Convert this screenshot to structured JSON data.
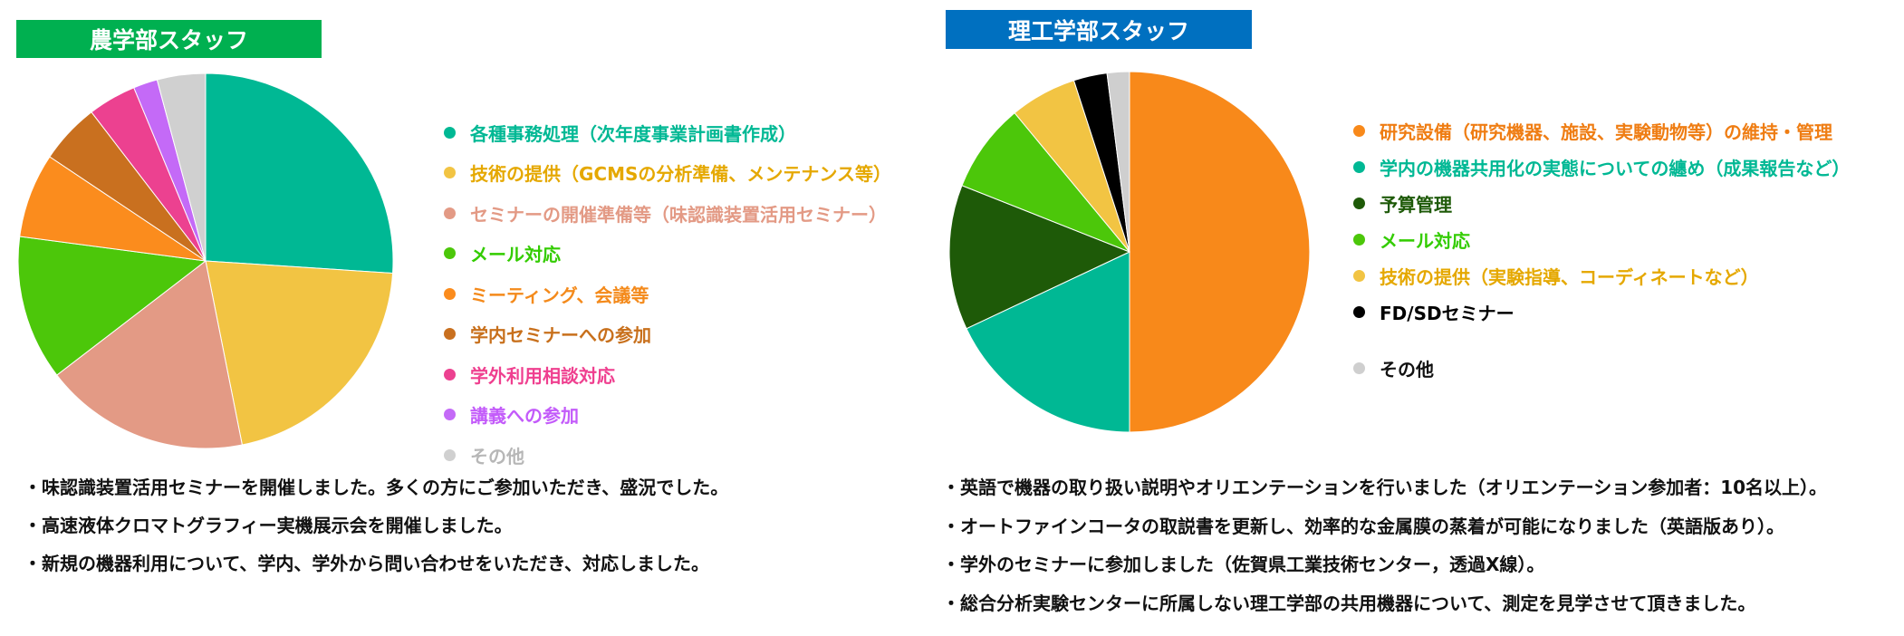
{
  "chart_data": [
    {
      "type": "pie",
      "title": "農学部スタッフ",
      "title_bar_color": "#00b050",
      "start_angle_deg": 0,
      "direction": "clockwise",
      "slices": [
        {
          "label": "各種事務処理（次年度事業計画書作成）",
          "value": 25,
          "color": "#00b894",
          "text_color": "#00b894"
        },
        {
          "label": "技術の提供（GCMSの分析準備、メンテナンス等）",
          "value": 20,
          "color": "#f2c443",
          "text_color": "#e5a800"
        },
        {
          "label": "セミナーの開催準備等（味認識装置活用セミナー）",
          "value": 17,
          "color": "#e39a85",
          "text_color": "#e39a85"
        },
        {
          "label": "メール対応",
          "value": 12,
          "color": "#4cc70a",
          "text_color": "#33cc00"
        },
        {
          "label": "ミーティング、会議等",
          "value": 7,
          "color": "#fb8c1d",
          "text_color": "#f48a1b"
        },
        {
          "label": "学内セミナーへの参加",
          "value": 5,
          "color": "#c9701f",
          "text_color": "#c8701c"
        },
        {
          "label": "学外利用相談対応",
          "value": 4,
          "color": "#ec4190",
          "text_color": "#ef3f8f"
        },
        {
          "label": "講義への参加",
          "value": 2,
          "color": "#c46af7",
          "text_color": "#c35bfa"
        },
        {
          "label": "その他",
          "value": 4,
          "color": "#d0d0d0",
          "text_color": "#b7b7b7"
        }
      ],
      "notes": [
        "・味認識装置活用セミナーを開催しました。多くの方にご参加いただき、盛況でした。",
        "・高速液体クロマトグラフィー実機展示会を開催しました。",
        "・新規の機器利用について、学内、学外から問い合わせをいただき、対応しました。"
      ]
    },
    {
      "type": "pie",
      "title": "理工学部スタッフ",
      "title_bar_color": "#0070c0",
      "start_angle_deg": 0,
      "direction": "clockwise",
      "slices": [
        {
          "label": "研究設備（研究機器、施設、実験動物等）の維持・管理",
          "value": 50,
          "color": "#f8891a",
          "text_color": "#ef7d13"
        },
        {
          "label": "学内の機器共用化の実態についての纏め（成果報告など）",
          "value": 18,
          "color": "#00b894",
          "text_color": "#00b894"
        },
        {
          "label": "予算管理",
          "value": 13,
          "color": "#1e5a08",
          "text_color": "#1e5a08"
        },
        {
          "label": "メール対応",
          "value": 8,
          "color": "#4cc70a",
          "text_color": "#33cc00"
        },
        {
          "label": "技術の提供（実験指導、コーディネートなど）",
          "value": 6,
          "color": "#f2c443",
          "text_color": "#e5a800"
        },
        {
          "label": "FD/SDセミナー",
          "value": 3,
          "color": "#000000",
          "text_color": "#000000"
        },
        {
          "label": "その他",
          "value": 2,
          "color": "#cfcfcf",
          "text_color": "#111111"
        }
      ],
      "notes": [
        "・英語で機器の取り扱い説明やオリエンテーションを行いました（オリエンテーション参加者：10名以上）。",
        "・オートファインコータの取説書を更新し、効率的な金属膜の蒸着が可能になりました（英語版あり）。",
        "・学外のセミナーに参加しました（佐賀県工業技術センター，透過X線）。",
        "・総合分析実験センターに所属しない理工学部の共用機器について、測定を見学させて頂きました。"
      ]
    }
  ]
}
